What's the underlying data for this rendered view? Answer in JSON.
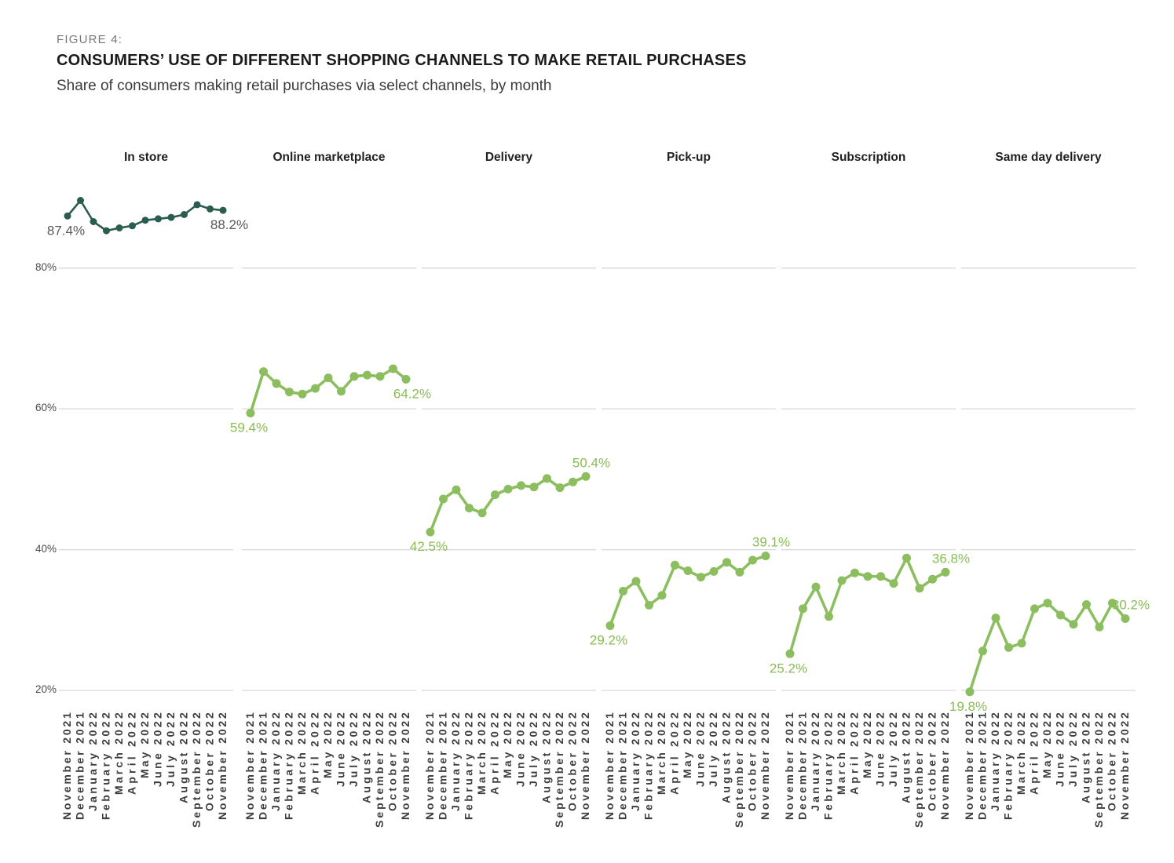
{
  "figure": {
    "label": "FIGURE 4:",
    "title": "CONSUMERS’ USE OF DIFFERENT SHOPPING CHANNELS TO MAKE RETAIL PURCHASES",
    "subtitle": "Share of consumers making retail purchases via select channels, by month"
  },
  "colors": {
    "in_store_line": "#2a5c4f",
    "green_line": "#8cbe5f",
    "green_label": "#8abc55",
    "gray_label": "#58595b",
    "gridline": "#d8d8d8",
    "month_label": "#3e3e40"
  },
  "chart_data": {
    "type": "line",
    "title": "Consumers’ use of different shopping channels to make retail purchases",
    "xlabel": "",
    "ylabel": "",
    "x": [
      "November 2021",
      "December 2021",
      "January 2022",
      "February 2022",
      "March 2022",
      "April 2022",
      "May 2022",
      "June 2022",
      "July 2022",
      "August 2022",
      "September 2022",
      "October 2022",
      "November 2022"
    ],
    "yticks": [
      {
        "label": "80%",
        "value": 80
      },
      {
        "label": "60%",
        "value": 60
      },
      {
        "label": "40%",
        "value": 40
      },
      {
        "label": "20%",
        "value": 20
      }
    ],
    "ylim": [
      17,
      93
    ],
    "grid": "horizontal",
    "legend": "none, small multiples with per-panel titles",
    "series": [
      {
        "name": "In store",
        "values": [
          87.4,
          89.6,
          86.6,
          85.3,
          85.7,
          86.0,
          86.8,
          87.0,
          87.2,
          87.6,
          89.0,
          88.4,
          88.2
        ],
        "start_label": "87.4%",
        "end_label": "88.2%",
        "end_label_position": "below",
        "palette": "dark"
      },
      {
        "name": "Online marketplace",
        "values": [
          59.4,
          65.3,
          63.6,
          62.4,
          62.1,
          62.9,
          64.4,
          62.5,
          64.6,
          64.8,
          64.6,
          65.7,
          64.2
        ],
        "start_label": "59.4%",
        "end_label": "64.2%",
        "end_label_position": "below",
        "palette": "green"
      },
      {
        "name": "Delivery",
        "values": [
          42.5,
          47.2,
          48.5,
          45.9,
          45.2,
          47.8,
          48.6,
          49.1,
          48.9,
          50.1,
          48.8,
          49.6,
          50.4
        ],
        "start_label": "42.5%",
        "end_label": "50.4%",
        "end_label_position": "above",
        "palette": "green"
      },
      {
        "name": "Pick-up",
        "values": [
          29.2,
          34.1,
          35.5,
          32.1,
          33.5,
          37.8,
          37.0,
          36.1,
          36.9,
          38.2,
          36.8,
          38.5,
          39.1
        ],
        "start_label": "29.2%",
        "end_label": "39.1%",
        "end_label_position": "above",
        "palette": "green"
      },
      {
        "name": "Subscription",
        "values": [
          25.2,
          31.6,
          34.7,
          30.5,
          35.6,
          36.7,
          36.2,
          36.2,
          35.2,
          38.8,
          34.5,
          35.8,
          36.8
        ],
        "start_label": "25.2%",
        "end_label": "36.8%",
        "end_label_position": "above",
        "palette": "green"
      },
      {
        "name": "Same day delivery",
        "values": [
          19.8,
          25.6,
          30.3,
          26.1,
          26.7,
          31.6,
          32.4,
          30.7,
          29.4,
          32.2,
          29.0,
          32.4,
          30.2
        ],
        "start_label": "19.8%",
        "end_label": "30.2%",
        "end_label_position": "above",
        "palette": "green"
      }
    ]
  }
}
